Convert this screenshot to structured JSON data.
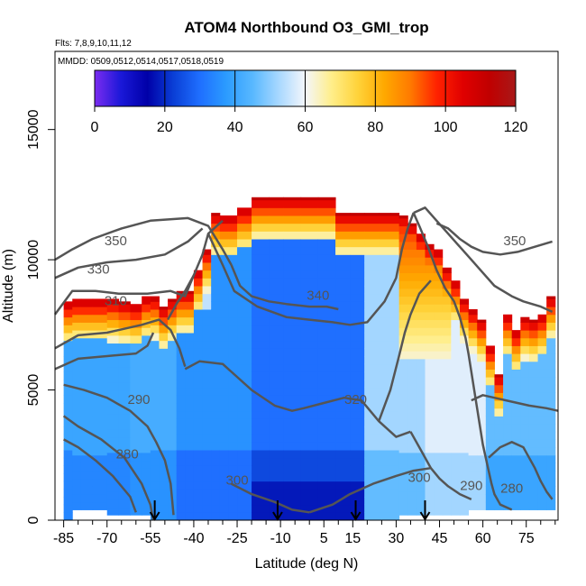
{
  "chart_data": {
    "type": "heatmap",
    "title": "ATOM4 Northbound O3_GMI_trop",
    "subtitle_flights": "Flts: 7,8,9,10,11,12",
    "subtitle_dates": "MMDD: 0509,0512,0514,0517,0518,0519",
    "xlabel": "Latitude (deg N)",
    "ylabel": "Altitude (m)",
    "xlim": [
      -88,
      86
    ],
    "ylim": [
      0,
      18000
    ],
    "x_ticks": [
      "-85",
      "-70",
      "-55",
      "-40",
      "-25",
      "-10",
      "5",
      "15",
      "30",
      "45",
      "60",
      "75"
    ],
    "x_tick_values": [
      -85,
      -70,
      -55,
      -40,
      -25,
      -10,
      5,
      15,
      30,
      45,
      60,
      75
    ],
    "x_minor_ticks": [
      -80,
      -75,
      -65,
      -60,
      -50,
      -45,
      -35,
      -30,
      -20,
      -15,
      -5,
      0,
      10,
      20,
      25,
      35,
      40,
      50,
      55,
      65,
      70,
      80,
      85
    ],
    "y_ticks": [
      "0",
      "5000",
      "10000",
      "15000"
    ],
    "y_tick_values": [
      0,
      5000,
      10000,
      15000
    ],
    "colorbar": {
      "min": 0,
      "max": 120,
      "tick_labels": [
        "0",
        "20",
        "40",
        "60",
        "80",
        "100",
        "120"
      ],
      "tick_values": [
        0,
        20,
        40,
        60,
        80,
        100,
        120
      ],
      "colors": [
        "#7b2cf0",
        "#1a18d8",
        "#0000a8",
        "#0a3fd6",
        "#1f6fff",
        "#2b9bff",
        "#58b8ff",
        "#a8d8ff",
        "#f4f6fb",
        "#ffee8a",
        "#ffd33a",
        "#ffa900",
        "#ff7a00",
        "#ff2200",
        "#e00000",
        "#c00000",
        "#a81818"
      ]
    },
    "arrows_latitude": [
      -53.5,
      -11,
      16,
      40
    ],
    "profile_bounds": [
      [
        -85,
        -82,
        0,
        8400
      ],
      [
        -82,
        -79,
        400,
        8500
      ],
      [
        -79,
        -75,
        400,
        8500
      ],
      [
        -75,
        -70,
        400,
        8500
      ],
      [
        -70,
        -66,
        200,
        8500
      ],
      [
        -66,
        -62,
        200,
        8400
      ],
      [
        -62,
        -58,
        200,
        8300
      ],
      [
        -58,
        -55,
        200,
        8600
      ],
      [
        -55,
        -52,
        0,
        8600
      ],
      [
        -52,
        -49,
        0,
        8200
      ],
      [
        -49,
        -46,
        0,
        8500
      ],
      [
        -46,
        -43,
        0,
        8800
      ],
      [
        -43,
        -40,
        0,
        8800
      ],
      [
        -40,
        -37,
        0,
        9600
      ],
      [
        -37,
        -34,
        0,
        10400
      ],
      [
        -34,
        -31,
        0,
        11800
      ],
      [
        -31,
        -28,
        0,
        11700
      ],
      [
        -28,
        -25,
        0,
        11700
      ],
      [
        -25,
        -20,
        0,
        12000
      ],
      [
        -20,
        -14,
        0,
        12400
      ],
      [
        -14,
        -9,
        0,
        12400
      ],
      [
        -9,
        -3,
        0,
        12400
      ],
      [
        -3,
        3,
        0,
        12400
      ],
      [
        3,
        9,
        0,
        12400
      ],
      [
        9,
        14,
        0,
        11800
      ],
      [
        14,
        19,
        0,
        11800
      ],
      [
        19,
        24,
        0,
        11800
      ],
      [
        24,
        28,
        0,
        11800
      ],
      [
        28,
        31,
        0,
        11800
      ],
      [
        31,
        34,
        200,
        11700
      ],
      [
        34,
        37,
        200,
        11400
      ],
      [
        37,
        40,
        200,
        11000
      ],
      [
        40,
        43,
        200,
        10600
      ],
      [
        43,
        46,
        200,
        10400
      ],
      [
        46,
        49,
        200,
        9700
      ],
      [
        49,
        52,
        200,
        9200
      ],
      [
        52,
        55,
        200,
        8500
      ],
      [
        55,
        58,
        400,
        8100
      ],
      [
        58,
        61,
        400,
        7700
      ],
      [
        61,
        64,
        400,
        6700
      ],
      [
        64,
        67,
        400,
        5600
      ],
      [
        67,
        70,
        400,
        7900
      ],
      [
        70,
        73,
        400,
        7300
      ],
      [
        73,
        76,
        400,
        7800
      ],
      [
        76,
        79,
        400,
        7700
      ],
      [
        79,
        82,
        400,
        7900
      ],
      [
        82,
        85,
        400,
        8600
      ]
    ],
    "contour_labels": [
      {
        "text": "350",
        "x": -67,
        "y": 10700
      },
      {
        "text": "330",
        "x": -73,
        "y": 9600
      },
      {
        "text": "310",
        "x": -67,
        "y": 8400
      },
      {
        "text": "340",
        "x": 3,
        "y": 8600
      },
      {
        "text": "320",
        "x": 16,
        "y": 4600
      },
      {
        "text": "290",
        "x": -59,
        "y": 4600
      },
      {
        "text": "280",
        "x": -63,
        "y": 2500
      },
      {
        "text": "300",
        "x": -25,
        "y": 1500
      },
      {
        "text": "300",
        "x": 38,
        "y": 1600
      },
      {
        "text": "290",
        "x": 56,
        "y": 1300
      },
      {
        "text": "280",
        "x": 70,
        "y": 1200
      },
      {
        "text": "350",
        "x": 71,
        "y": 10700
      }
    ],
    "contour_lines": [
      [
        [
          -88,
          10000
        ],
        [
          -82,
          10400
        ],
        [
          -75,
          10800
        ],
        [
          -65,
          11200
        ],
        [
          -55,
          11500
        ],
        [
          -42,
          11600
        ],
        [
          -35,
          11300
        ],
        [
          -30,
          10400
        ],
        [
          -27,
          9800
        ]
      ],
      [
        [
          -88,
          9300
        ],
        [
          -80,
          9700
        ],
        [
          -70,
          9900
        ],
        [
          -60,
          10000
        ],
        [
          -50,
          10200
        ],
        [
          -42,
          10700
        ],
        [
          -37,
          11200
        ]
      ],
      [
        [
          -88,
          7900
        ],
        [
          -82,
          8800
        ],
        [
          -74,
          8800
        ],
        [
          -66,
          8700
        ],
        [
          -56,
          8700
        ],
        [
          -48,
          8800
        ],
        [
          -43,
          8600
        ],
        [
          -40,
          9400
        ],
        [
          -37,
          10200
        ],
        [
          -35,
          11000
        ],
        [
          -30,
          11500
        ]
      ],
      [
        [
          -88,
          6600
        ],
        [
          -80,
          7100
        ],
        [
          -70,
          7200
        ],
        [
          -58,
          7500
        ],
        [
          -52,
          7700
        ],
        [
          -48,
          7300
        ],
        [
          -45,
          6600
        ],
        [
          -43,
          5900
        ]
      ],
      [
        [
          -88,
          5800
        ],
        [
          -80,
          6200
        ],
        [
          -70,
          6300
        ],
        [
          -60,
          6400
        ],
        [
          -56,
          6700
        ],
        [
          -54,
          7200
        ]
      ],
      [
        [
          -85,
          5200
        ],
        [
          -78,
          5000
        ],
        [
          -70,
          4700
        ],
        [
          -62,
          4200
        ],
        [
          -56,
          3600
        ],
        [
          -53,
          3000
        ],
        [
          -50,
          2300
        ],
        [
          -48,
          1400
        ],
        [
          -47,
          200
        ]
      ],
      [
        [
          -85,
          4000
        ],
        [
          -80,
          3600
        ],
        [
          -72,
          3100
        ],
        [
          -64,
          2400
        ],
        [
          -58,
          1400
        ],
        [
          -55,
          600
        ],
        [
          -54,
          0
        ]
      ],
      [
        [
          -85,
          3100
        ],
        [
          -80,
          2800
        ],
        [
          -74,
          2300
        ],
        [
          -68,
          1700
        ],
        [
          -62,
          900
        ],
        [
          -60,
          300
        ]
      ],
      [
        [
          -27,
          1400
        ],
        [
          -20,
          1000
        ],
        [
          -12,
          700
        ],
        [
          -6,
          400
        ],
        [
          0,
          300
        ]
      ],
      [
        [
          -43,
          5800
        ],
        [
          -38,
          6100
        ],
        [
          -30,
          6000
        ],
        [
          -20,
          5000
        ],
        [
          -12,
          4400
        ],
        [
          -6,
          4200
        ],
        [
          -2,
          4300
        ],
        [
          5,
          4500
        ],
        [
          12,
          4700
        ],
        [
          18,
          4600
        ],
        [
          24,
          3800
        ],
        [
          30,
          3200
        ],
        [
          35,
          3400
        ]
      ],
      [
        [
          -35,
          11000
        ],
        [
          -30,
          9800
        ],
        [
          -26,
          8800
        ],
        [
          -18,
          8200
        ],
        [
          -8,
          7800
        ],
        [
          0,
          7700
        ],
        [
          8,
          7600
        ],
        [
          14,
          7500
        ],
        [
          20,
          7600
        ],
        [
          26,
          8400
        ],
        [
          30,
          9300
        ],
        [
          32,
          10400
        ],
        [
          34,
          11200
        ],
        [
          36,
          11800
        ]
      ],
      [
        [
          24,
          3800
        ],
        [
          28,
          5000
        ],
        [
          31,
          6300
        ],
        [
          33,
          7200
        ],
        [
          35,
          7900
        ],
        [
          38,
          8700
        ],
        [
          42,
          9200
        ]
      ],
      [
        [
          36,
          11800
        ],
        [
          40,
          12000
        ],
        [
          44,
          11500
        ],
        [
          48,
          11000
        ],
        [
          52,
          10500
        ],
        [
          56,
          10000
        ],
        [
          60,
          9500
        ],
        [
          64,
          9000
        ],
        [
          70,
          8600
        ],
        [
          74,
          8400
        ],
        [
          80,
          8200
        ],
        [
          84,
          8000
        ]
      ],
      [
        [
          36,
          11800
        ],
        [
          38,
          11300
        ],
        [
          41,
          10500
        ],
        [
          44,
          9600
        ],
        [
          47,
          8900
        ],
        [
          50,
          8400
        ],
        [
          52,
          7800
        ],
        [
          54,
          7000
        ],
        [
          55,
          6400
        ],
        [
          56,
          5700
        ],
        [
          57,
          5000
        ],
        [
          58,
          4300
        ],
        [
          59,
          3600
        ],
        [
          60,
          2900
        ],
        [
          61,
          2400
        ],
        [
          62,
          1900
        ],
        [
          63,
          1400
        ],
        [
          64,
          1000
        ],
        [
          66,
          600
        ],
        [
          70,
          400
        ]
      ],
      [
        [
          44,
          11400
        ],
        [
          48,
          11200
        ],
        [
          52,
          10800
        ],
        [
          56,
          10500
        ],
        [
          60,
          10300
        ],
        [
          66,
          10200
        ],
        [
          72,
          10300
        ],
        [
          78,
          10500
        ],
        [
          84,
          10700
        ]
      ],
      [
        [
          56,
          4600
        ],
        [
          60,
          4800
        ],
        [
          64,
          4700
        ],
        [
          68,
          4600
        ],
        [
          72,
          4500
        ],
        [
          76,
          4400
        ],
        [
          82,
          4300
        ],
        [
          86,
          4200
        ]
      ],
      [
        [
          35,
          3400
        ],
        [
          38,
          2800
        ],
        [
          42,
          2000
        ],
        [
          45,
          1600
        ],
        [
          48,
          1300
        ],
        [
          52,
          1000
        ],
        [
          56,
          800
        ]
      ],
      [
        [
          0,
          300
        ],
        [
          8,
          600
        ],
        [
          14,
          1000
        ],
        [
          22,
          1400
        ],
        [
          30,
          1700
        ],
        [
          36,
          1900
        ],
        [
          42,
          2000
        ]
      ],
      [
        [
          62,
          2400
        ],
        [
          66,
          2800
        ],
        [
          70,
          3000
        ],
        [
          74,
          2800
        ],
        [
          76,
          2400
        ],
        [
          78,
          2000
        ],
        [
          80,
          1500
        ],
        [
          82,
          1100
        ],
        [
          84,
          800
        ]
      ],
      [
        [
          -27,
          9800
        ],
        [
          -24,
          9000
        ],
        [
          -20,
          8600
        ],
        [
          -14,
          8400
        ],
        [
          -8,
          8300
        ],
        [
          0,
          8200
        ],
        [
          6,
          8200
        ],
        [
          10,
          8100
        ]
      ],
      [
        [
          -40,
          9400
        ],
        [
          -43,
          8800
        ],
        [
          -46,
          8300
        ],
        [
          -49,
          7700
        ]
      ]
    ]
  }
}
